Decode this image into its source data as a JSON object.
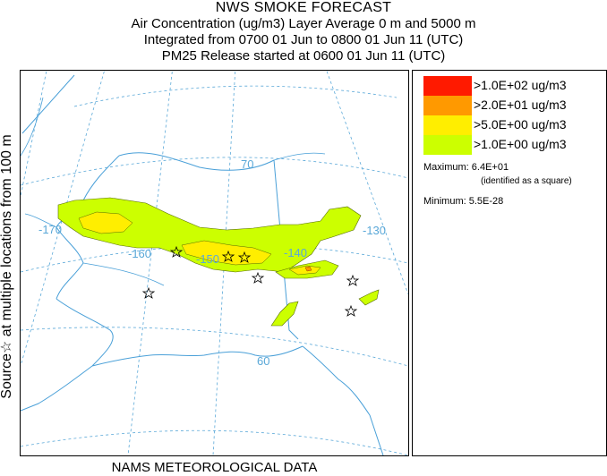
{
  "header": {
    "title": "NWS SMOKE FORECAST",
    "line2": "Air Concentration (ug/m3) Layer Average    0 m and  5000 m",
    "line3": "Integrated from 0700 01 Jun to 0800 01 Jun 11 (UTC)",
    "line4": "PM25 Release started at 0600 01 Jun 11 (UTC)"
  },
  "side_label": "Source☆ at multiple locations from 100 m",
  "footer": "NAMS METEOROLOGICAL DATA",
  "map": {
    "longitude_labels": [
      "-170",
      "-160",
      "-150",
      "-140",
      "-130"
    ],
    "latitude_labels": [
      "70",
      "60"
    ],
    "colors": {
      "coastline": "#4aa0d8",
      "graticule": "#5aa8d8",
      "label": "#5aa8d8"
    }
  },
  "legend": {
    "items": [
      {
        "label": ">1.0E+02 ug/m3",
        "color": "#ff1a00"
      },
      {
        "label": ">2.0E+01 ug/m3",
        "color": "#ff9900"
      },
      {
        "label": ">5.0E+00 ug/m3",
        "color": "#ffee00"
      },
      {
        "label": ">1.0E+00 ug/m3",
        "color": "#ccff00"
      }
    ],
    "maximum": "Maximum: 6.4E+01",
    "maximum_note": "(identified as a square)",
    "minimum": "Minimum: 5.5E-28"
  }
}
